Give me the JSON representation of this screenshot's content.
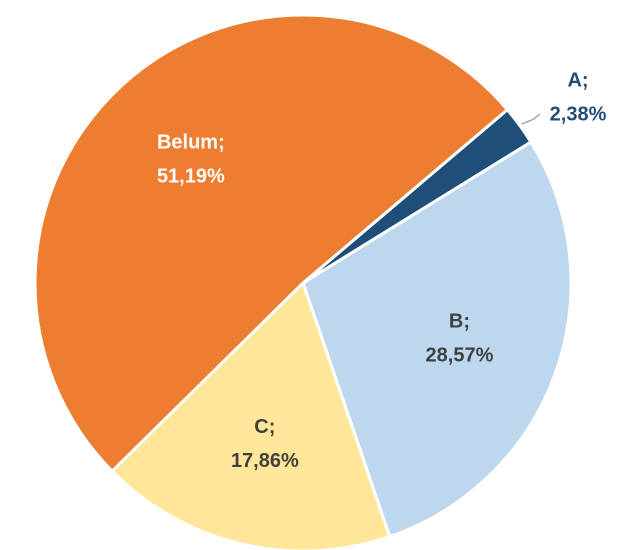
{
  "chart_data": {
    "type": "pie",
    "categories": [
      "A;",
      "B;",
      "C;",
      "Belum;"
    ],
    "values": [
      2.38,
      28.57,
      17.86,
      51.19
    ],
    "value_labels": [
      "2,38%",
      "28,57%",
      "17,86%",
      "51,19%"
    ],
    "colors": [
      "#1f4e79",
      "#bdd7ee",
      "#ffe699",
      "#ed7d31"
    ]
  }
}
